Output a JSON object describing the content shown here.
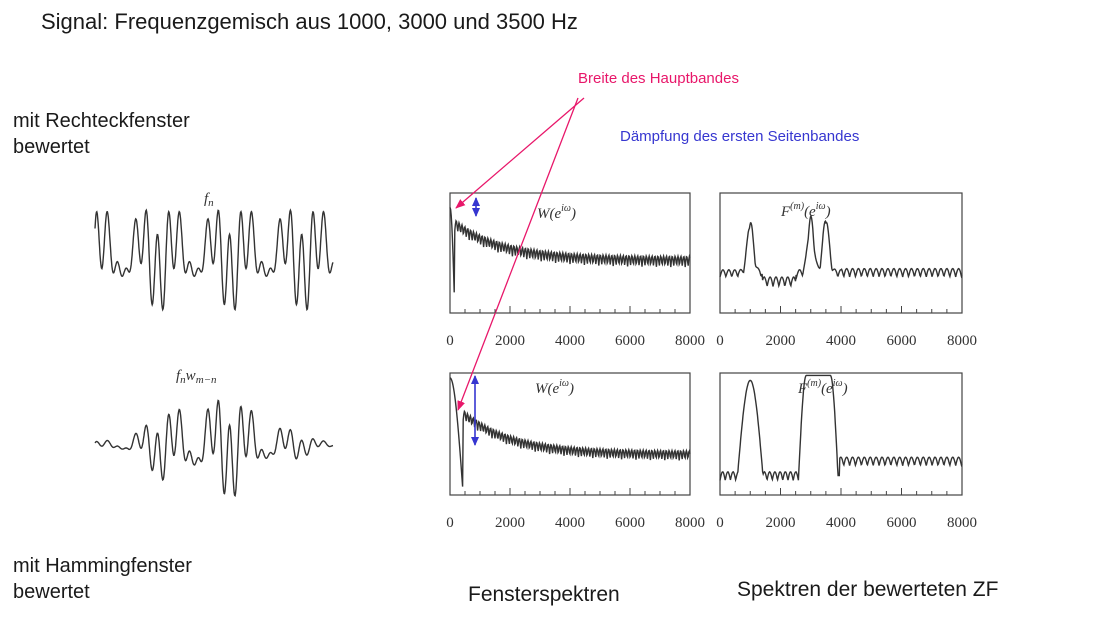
{
  "title": "Signal: Frequenzgemisch aus 1000, 3000 und 3500 Hz",
  "labels": {
    "rect_window": [
      "mit Rechteckfenster",
      "bewertet"
    ],
    "hamming_window": [
      "mit Hammingfenster",
      "bewertet"
    ],
    "window_spectra": "Fensterspektren",
    "weighted_spectra": "Spektren der bewerteten ZF"
  },
  "annotations": {
    "main_lobe_width": "Breite des Hauptbandes",
    "sidelobe_attenuation": "Dämpfung des ersten Seitenbandes"
  },
  "plots": {
    "signal_rect_label": "f_n",
    "signal_hamm_label": "f_n w_{m−n}",
    "window_label": "W(e^{iω})",
    "spectrum_label": "F^{(m)}(e^{iω})",
    "x_ticks": [
      "0",
      "2000",
      "4000",
      "6000",
      "8000"
    ],
    "x_range": [
      0,
      8000
    ]
  },
  "colors": {
    "pink": "#e8176a",
    "blue": "#3636d0",
    "trace": "#333333"
  }
}
